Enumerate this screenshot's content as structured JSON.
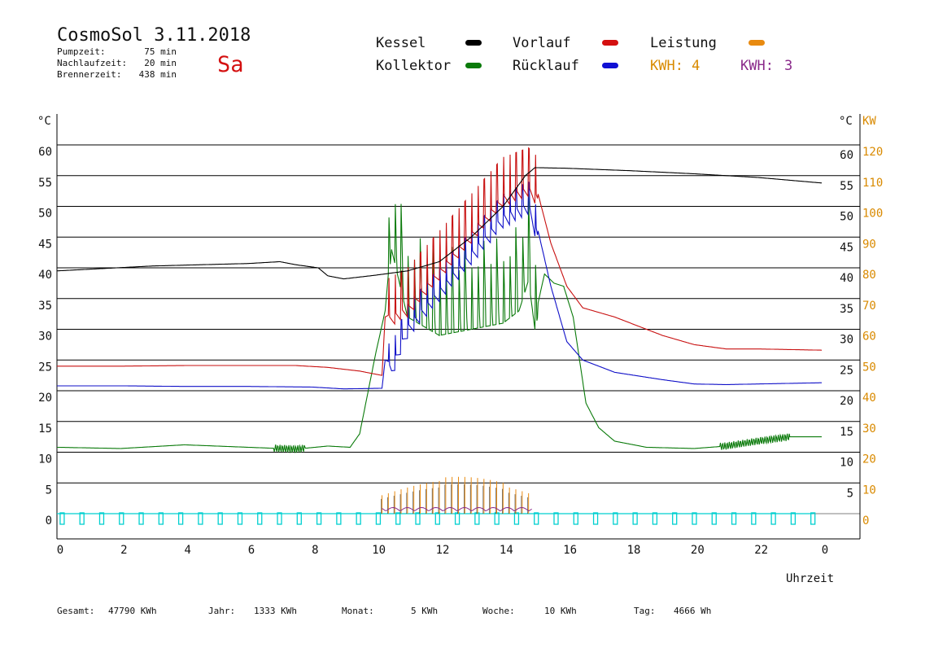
{
  "header": {
    "title": "CosmoSol 3.11.2018",
    "day": "Sa",
    "info": [
      {
        "label": "Pumpzeit:",
        "value": "75 min"
      },
      {
        "label": "Nachlaufzeit:",
        "value": "20 min"
      },
      {
        "label": "Brennerzeit:",
        "value": "438 min"
      }
    ]
  },
  "legend": {
    "kessel": "Kessel",
    "kollektor": "Kollektor",
    "vorlauf": "Vorlauf",
    "ruecklauf": "Rücklauf",
    "leistung": "Leistung",
    "kwh1": "KWH: 4",
    "kwh2_label": "KWH:",
    "kwh2_value": "3"
  },
  "axes": {
    "left_unit": "°C",
    "right_unit": "°C",
    "kw_unit": "KW",
    "x_label": "Uhrzeit"
  },
  "footer": [
    {
      "label": "Gesamt:",
      "value": "47790 KWh"
    },
    {
      "label": "Jahr:",
      "value": "1333 KWh"
    },
    {
      "label": "Monat:",
      "value": "5 KWh"
    },
    {
      "label": "Woche:",
      "value": "10 KWh"
    },
    {
      "label": "Tag:",
      "value": "4666 Wh"
    }
  ],
  "colors": {
    "kessel": "#000000",
    "kollektor": "#0a7a0a",
    "vorlauf": "#c81010",
    "ruecklauf": "#1010c8",
    "leistung": "#e88a10",
    "kwh2": "#8a2a8a",
    "pump": "#00d0d0",
    "kw_axis": "#d98a00"
  },
  "chart_data": {
    "type": "line",
    "x_range": [
      0,
      24
    ],
    "x_ticks": [
      "0",
      "2",
      "4",
      "6",
      "8",
      "10",
      "12",
      "14",
      "16",
      "18",
      "20",
      "22",
      "0"
    ],
    "y_left_range": [
      0,
      65
    ],
    "y_left_ticks": [
      0,
      5,
      10,
      15,
      20,
      25,
      30,
      35,
      40,
      45,
      50,
      55,
      60
    ],
    "y_right_celsius_ticks": [
      5,
      10,
      15,
      20,
      25,
      30,
      35,
      40,
      45,
      50,
      55,
      60
    ],
    "y_right_kw_ticks": [
      0,
      10,
      20,
      30,
      40,
      50,
      60,
      70,
      80,
      90,
      100,
      110,
      120
    ],
    "series": [
      {
        "name": "Kessel",
        "points": [
          [
            0,
            39.5
          ],
          [
            3,
            40.3
          ],
          [
            6,
            40.7
          ],
          [
            7,
            41
          ],
          [
            7.5,
            40.5
          ],
          [
            8.2,
            40
          ],
          [
            8.5,
            38.7
          ],
          [
            9,
            38.2
          ],
          [
            10,
            38.8
          ],
          [
            11,
            39.5
          ],
          [
            12,
            41
          ],
          [
            13,
            45
          ],
          [
            14,
            50
          ],
          [
            14.7,
            55
          ],
          [
            15,
            56.3
          ],
          [
            16,
            56.2
          ],
          [
            18,
            55.8
          ],
          [
            20,
            55.3
          ],
          [
            22,
            54.7
          ],
          [
            24,
            53.8
          ]
        ]
      },
      {
        "name": "Kollektor",
        "points": [
          [
            0,
            10.8
          ],
          [
            2,
            10.6
          ],
          [
            4,
            11.2
          ],
          [
            6,
            10.8
          ],
          [
            7.5,
            10.5
          ],
          [
            8.5,
            11
          ],
          [
            9.2,
            10.8
          ],
          [
            9.5,
            13
          ],
          [
            10,
            26
          ],
          [
            10.3,
            33
          ],
          [
            10.5,
            45
          ],
          [
            11,
            34
          ],
          [
            12,
            31
          ],
          [
            13,
            32
          ],
          [
            14,
            33
          ],
          [
            14.5,
            35
          ],
          [
            14.8,
            40
          ],
          [
            15,
            32
          ],
          [
            15.3,
            39
          ],
          [
            15.6,
            37.5
          ],
          [
            15.9,
            37
          ],
          [
            16.2,
            32
          ],
          [
            16.6,
            18
          ],
          [
            17,
            14
          ],
          [
            17.5,
            11.8
          ],
          [
            18.5,
            10.8
          ],
          [
            20,
            10.6
          ],
          [
            21,
            11
          ],
          [
            22,
            11.8
          ],
          [
            23,
            12.5
          ],
          [
            24,
            12.5
          ]
        ]
      },
      {
        "name": "Vorlauf",
        "points": [
          [
            0,
            24
          ],
          [
            2,
            24
          ],
          [
            4,
            24.1
          ],
          [
            6,
            24.1
          ],
          [
            7.5,
            24.1
          ],
          [
            8.5,
            23.8
          ],
          [
            9.5,
            23.2
          ],
          [
            10.2,
            22.5
          ],
          [
            10.3,
            32
          ],
          [
            11,
            34
          ],
          [
            12,
            40
          ],
          [
            13,
            46
          ],
          [
            14,
            52
          ],
          [
            14.8,
            53.5
          ],
          [
            15.1,
            52
          ],
          [
            15.5,
            44
          ],
          [
            16,
            37
          ],
          [
            16.5,
            33.5
          ],
          [
            17.5,
            32
          ],
          [
            19,
            29
          ],
          [
            20,
            27.5
          ],
          [
            21,
            26.8
          ],
          [
            22,
            26.8
          ],
          [
            23,
            26.7
          ],
          [
            24,
            26.6
          ]
        ]
      },
      {
        "name": "Rücklauf",
        "points": [
          [
            0,
            20.8
          ],
          [
            2,
            20.8
          ],
          [
            4,
            20.7
          ],
          [
            6,
            20.7
          ],
          [
            8,
            20.6
          ],
          [
            9,
            20.3
          ],
          [
            10.2,
            20.4
          ],
          [
            10.3,
            25
          ],
          [
            10.5,
            24.5
          ],
          [
            11,
            31
          ],
          [
            12,
            37
          ],
          [
            13,
            43
          ],
          [
            14,
            49
          ],
          [
            14.8,
            51
          ],
          [
            15.1,
            46
          ],
          [
            15.5,
            37
          ],
          [
            16,
            28
          ],
          [
            16.5,
            25
          ],
          [
            17.5,
            23
          ],
          [
            19,
            21.8
          ],
          [
            20,
            21.1
          ],
          [
            21,
            21
          ],
          [
            22,
            21.1
          ],
          [
            23,
            21.2
          ],
          [
            24,
            21.3
          ]
        ]
      }
    ]
  }
}
